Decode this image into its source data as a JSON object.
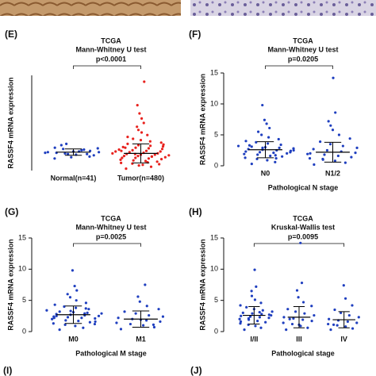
{
  "chart_data": [
    {
      "type": "dot",
      "label": "(E)",
      "title": "TCGA",
      "subtitle": "Mann-Whitney  U test",
      "annotation": "p<0.0001",
      "ylabel": "RASSF4 mRNA expression",
      "ylim": [
        0,
        15
      ],
      "categories": [
        "Normal(n=41)",
        "Tumor(n=480)"
      ],
      "groups": [
        {
          "color": "#1f3fbf",
          "mean": 2.9,
          "sd": 0.5,
          "values": [
            2.8,
            3.1,
            2.5,
            3.4,
            2.9,
            2.2,
            3.0,
            2.7,
            3.6,
            2.4,
            3.2,
            2.6,
            4.0,
            2.9,
            3.3,
            2.1,
            2.8,
            3.5,
            2.6,
            3.0,
            4.2,
            1.9
          ]
        },
        {
          "color": "#e8221e",
          "mean": 2.7,
          "sd": 1.5,
          "values": [
            0.3,
            0.6,
            0.9,
            1.1,
            1.2,
            1.4,
            1.5,
            1.6,
            1.7,
            1.8,
            1.9,
            2.0,
            2.0,
            2.1,
            2.2,
            2.3,
            2.3,
            2.4,
            2.5,
            2.5,
            2.6,
            2.7,
            2.7,
            2.8,
            2.9,
            3.0,
            3.0,
            3.1,
            3.2,
            3.3,
            3.4,
            3.5,
            3.6,
            3.7,
            3.8,
            3.9,
            4.0,
            4.2,
            4.4,
            4.6,
            4.8,
            5.0,
            5.3,
            5.6,
            6.0,
            6.4,
            6.9,
            7.5,
            8.2,
            9.0,
            10.3,
            14.0,
            1.3,
            2.6,
            3.1,
            1.0,
            2.2,
            0.8,
            3.6,
            4.1
          ]
        }
      ]
    },
    {
      "type": "dot",
      "label": "(F)",
      "title": "TCGA",
      "subtitle": "Mann-Whitney  U test",
      "annotation": "p=0.0205",
      "ylabel": "RASSF4 mRNA expression",
      "xlabel": "Pathological N stage",
      "ylim": [
        0,
        15
      ],
      "yticks": [
        0,
        5,
        10,
        15
      ],
      "categories": [
        "N0",
        "N1/2"
      ],
      "groups": [
        {
          "color": "#1f3fbf",
          "mean": 2.6,
          "sd": 1.3,
          "values": [
            0.3,
            0.6,
            0.9,
            1.1,
            1.3,
            1.5,
            1.6,
            1.8,
            1.9,
            2.0,
            2.1,
            2.2,
            2.3,
            2.4,
            2.5,
            2.6,
            2.7,
            2.8,
            2.9,
            3.0,
            3.1,
            3.2,
            3.4,
            3.6,
            3.8,
            4.0,
            4.3,
            4.6,
            5.0,
            5.5,
            6.1,
            6.8,
            7.4,
            9.8,
            2.2,
            1.7,
            2.9,
            3.3,
            2.5,
            1.2
          ]
        },
        {
          "color": "#1f3fbf",
          "mean": 2.2,
          "sd": 1.6,
          "values": [
            0.2,
            0.5,
            0.8,
            1.0,
            1.2,
            1.4,
            1.6,
            1.8,
            2.0,
            2.1,
            2.3,
            2.5,
            2.7,
            2.9,
            3.2,
            3.5,
            3.9,
            4.4,
            5.0,
            5.8,
            6.5,
            7.2,
            8.6,
            14.2,
            1.1,
            1.9
          ]
        }
      ]
    },
    {
      "type": "dot",
      "label": "(G)",
      "title": "TCGA",
      "subtitle": "Mann-Whitney  U test",
      "annotation": "p=0.0025",
      "ylabel": "RASSF4 mRNA expression",
      "xlabel": "Pathological M stage",
      "ylim": [
        0,
        15
      ],
      "yticks": [
        0,
        5,
        10,
        15
      ],
      "categories": [
        "M0",
        "M1"
      ],
      "groups": [
        {
          "color": "#1f3fbf",
          "mean": 2.7,
          "sd": 1.4,
          "values": [
            0.3,
            0.6,
            0.9,
            1.1,
            1.3,
            1.5,
            1.7,
            1.8,
            2.0,
            2.1,
            2.2,
            2.3,
            2.4,
            2.5,
            2.6,
            2.7,
            2.8,
            2.9,
            3.0,
            3.1,
            3.2,
            3.4,
            3.6,
            3.8,
            4.0,
            4.3,
            4.6,
            5.0,
            5.5,
            6.0,
            6.6,
            7.3,
            9.8,
            2.2,
            1.6,
            2.9,
            3.3,
            2.5,
            1.2,
            3.7
          ]
        },
        {
          "color": "#1f3fbf",
          "mean": 2.0,
          "sd": 1.3,
          "values": [
            0.4,
            0.7,
            1.0,
            1.2,
            1.4,
            1.6,
            1.8,
            2.0,
            2.2,
            2.4,
            2.6,
            2.9,
            3.2,
            3.6,
            4.1,
            4.8,
            5.6,
            7.5,
            1.1,
            1.9
          ]
        }
      ]
    },
    {
      "type": "dot",
      "label": "(H)",
      "title": "TCGA",
      "subtitle": "Kruskal-Wallis test",
      "annotation": "p=0.0095",
      "ylabel": "RASSF4 mRNA expression",
      "xlabel": "Pathological stage",
      "ylim": [
        0,
        15
      ],
      "yticks": [
        0,
        5,
        10,
        15
      ],
      "categories": [
        "I/II",
        "III",
        "IV"
      ],
      "groups": [
        {
          "color": "#1f3fbf",
          "mean": 2.6,
          "sd": 1.4,
          "values": [
            0.3,
            0.6,
            0.9,
            1.1,
            1.3,
            1.5,
            1.7,
            1.9,
            2.0,
            2.2,
            2.3,
            2.4,
            2.5,
            2.6,
            2.8,
            2.9,
            3.0,
            3.2,
            3.4,
            3.6,
            3.9,
            4.2,
            4.6,
            5.1,
            5.7,
            6.5,
            7.2,
            9.9,
            2.1,
            1.6,
            2.7,
            3.1
          ]
        },
        {
          "color": "#1f3fbf",
          "mean": 2.3,
          "sd": 1.7,
          "values": [
            0.3,
            0.6,
            0.9,
            1.2,
            1.4,
            1.7,
            1.9,
            2.1,
            2.3,
            2.6,
            2.9,
            3.2,
            3.6,
            4.1,
            4.7,
            5.5,
            6.6,
            7.8,
            14.2,
            1.1,
            2.0
          ]
        },
        {
          "color": "#1f3fbf",
          "mean": 1.9,
          "sd": 1.3,
          "values": [
            0.3,
            0.5,
            0.8,
            1.0,
            1.2,
            1.4,
            1.6,
            1.8,
            2.0,
            2.3,
            2.6,
            3.0,
            3.5,
            4.2,
            5.3,
            7.4,
            1.1
          ]
        }
      ]
    }
  ],
  "footer": {
    "left_label": "(I)",
    "right_label": "(J)"
  }
}
